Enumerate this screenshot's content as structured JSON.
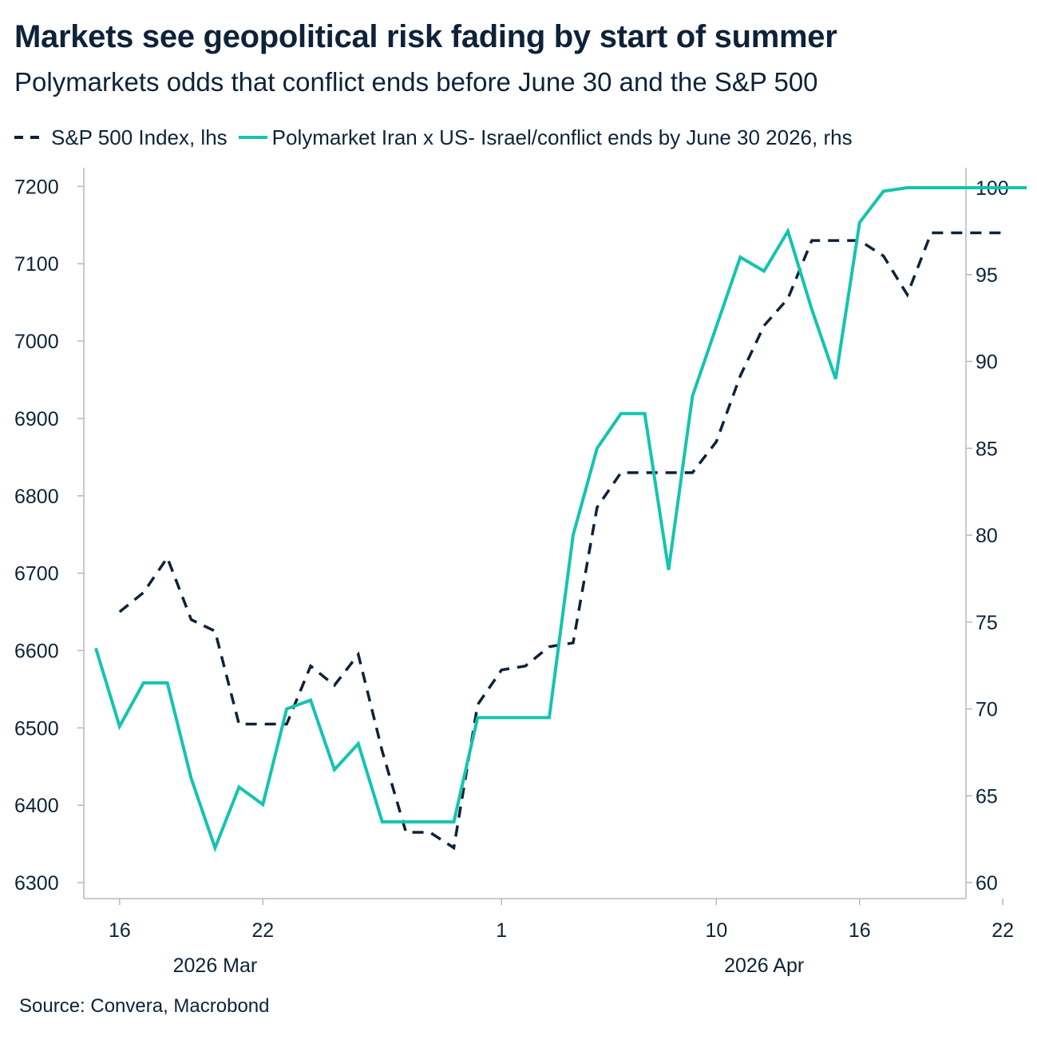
{
  "title": "Markets see geopolitical risk fading by start of summer",
  "subtitle": "Polymarkets odds that conflict ends before June 30 and the S&P 500",
  "source": "Source: Convera, Macrobond",
  "colors": {
    "sp500": "#0e2239",
    "polymarket": "#14c4b0",
    "axis": "#b8b8b8",
    "text": "#0e2239"
  },
  "chart_data": {
    "type": "line",
    "x_unit": "day of year 2026 (1 = Jan 1)",
    "xlim": [
      "2026-03-15",
      "2026-04-24"
    ],
    "x_ticks": [
      {
        "label": "16",
        "date": "2026-03-16"
      },
      {
        "label": "22",
        "date": "2026-03-22"
      },
      {
        "label": "1",
        "date": "2026-04-01"
      },
      {
        "label": "10",
        "date": "2026-04-10"
      },
      {
        "label": "16",
        "date": "2026-04-16"
      },
      {
        "label": "22",
        "date": "2026-04-22"
      }
    ],
    "x_month_labels": [
      {
        "label": "2026 Mar",
        "date": "2026-03-20"
      },
      {
        "label": "2026 Apr",
        "date": "2026-04-12"
      }
    ],
    "y_left": {
      "label": "",
      "lim": [
        6280,
        7220
      ],
      "ticks": [
        6300,
        6400,
        6500,
        6600,
        6700,
        6800,
        6900,
        7000,
        7100,
        7200
      ]
    },
    "y_right": {
      "label": "",
      "lim": [
        59,
        101.5
      ],
      "ticks": [
        60,
        65,
        70,
        75,
        80,
        85,
        90,
        95,
        100
      ]
    },
    "grid": false,
    "legend_position": "top",
    "series": [
      {
        "name": "S&P 500 Index, lhs",
        "axis": "left",
        "style": "dashed",
        "x": [
          "2026-03-16",
          "2026-03-17",
          "2026-03-18",
          "2026-03-19",
          "2026-03-20",
          "2026-03-21",
          "2026-03-22",
          "2026-03-23",
          "2026-03-24",
          "2026-03-25",
          "2026-03-26",
          "2026-03-27",
          "2026-03-28",
          "2026-03-29",
          "2026-03-30",
          "2026-03-31",
          "2026-04-01",
          "2026-04-02",
          "2026-04-03",
          "2026-04-04",
          "2026-04-05",
          "2026-04-06",
          "2026-04-07",
          "2026-04-08",
          "2026-04-09",
          "2026-04-10",
          "2026-04-11",
          "2026-04-12",
          "2026-04-13",
          "2026-04-14",
          "2026-04-15",
          "2026-04-16",
          "2026-04-17",
          "2026-04-18",
          "2026-04-19",
          "2026-04-20",
          "2026-04-21",
          "2026-04-22"
        ],
        "values": [
          6650,
          6675,
          6720,
          6640,
          6625,
          6505,
          6505,
          6505,
          6580,
          6555,
          6595,
          6470,
          6365,
          6365,
          6345,
          6530,
          6575,
          6580,
          6605,
          6610,
          6785,
          6830,
          6830,
          6830,
          6830,
          6870,
          6955,
          7020,
          7055,
          7130,
          7130,
          7130,
          7110,
          7060,
          7140,
          7140,
          7140,
          7140
        ]
      },
      {
        "name": "Polymarket Iran x US- Israel/conflict ends by June 30 2026, rhs",
        "axis": "right",
        "style": "solid",
        "x": [
          "2026-03-15",
          "2026-03-16",
          "2026-03-17",
          "2026-03-18",
          "2026-03-19",
          "2026-03-20",
          "2026-03-21",
          "2026-03-22",
          "2026-03-23",
          "2026-03-24",
          "2026-03-25",
          "2026-03-26",
          "2026-03-27",
          "2026-03-28",
          "2026-03-29",
          "2026-03-30",
          "2026-03-31",
          "2026-04-01",
          "2026-04-02",
          "2026-04-03",
          "2026-04-04",
          "2026-04-05",
          "2026-04-06",
          "2026-04-07",
          "2026-04-08",
          "2026-04-09",
          "2026-04-10",
          "2026-04-11",
          "2026-04-12",
          "2026-04-13",
          "2026-04-14",
          "2026-04-15",
          "2026-04-16",
          "2026-04-17",
          "2026-04-18",
          "2026-04-19",
          "2026-04-20",
          "2026-04-21",
          "2026-04-22",
          "2026-04-23"
        ],
        "values": [
          73.5,
          69,
          71.5,
          71.5,
          66,
          62,
          65.5,
          64.5,
          70,
          70.5,
          66.5,
          68,
          63.5,
          63.5,
          63.5,
          63.5,
          69.5,
          69.5,
          69.5,
          69.5,
          80,
          85,
          87,
          87,
          78,
          88,
          92,
          96,
          95.2,
          97.5,
          93,
          89,
          98,
          99.8,
          100,
          100,
          100,
          100,
          100,
          100
        ]
      }
    ]
  }
}
